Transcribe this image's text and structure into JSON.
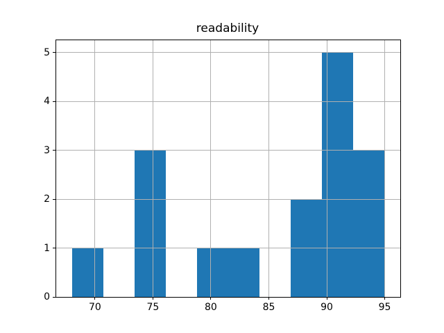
{
  "chart_data": {
    "type": "bar",
    "subtype": "histogram",
    "title": "readability",
    "xlabel": "",
    "ylabel": "",
    "bin_edges": [
      68.0,
      70.7,
      73.4,
      76.1,
      78.8,
      81.5,
      84.2,
      86.9,
      89.6,
      92.3,
      95.0
    ],
    "counts": [
      1,
      0,
      3,
      0,
      1,
      1,
      0,
      2,
      5,
      3
    ],
    "x_ticks": [
      70,
      75,
      80,
      85,
      90,
      95
    ],
    "y_ticks": [
      0,
      1,
      2,
      3,
      4,
      5
    ],
    "xlim": [
      66.65,
      96.35
    ],
    "ylim": [
      0,
      5.25
    ],
    "grid": true,
    "grid_above_bars": true,
    "legend": null,
    "bar_color": "#1f77b4",
    "grid_color": "#b0b0b0",
    "spine_color": "#000000",
    "background_color": "#ffffff",
    "text_color": "#000000"
  }
}
